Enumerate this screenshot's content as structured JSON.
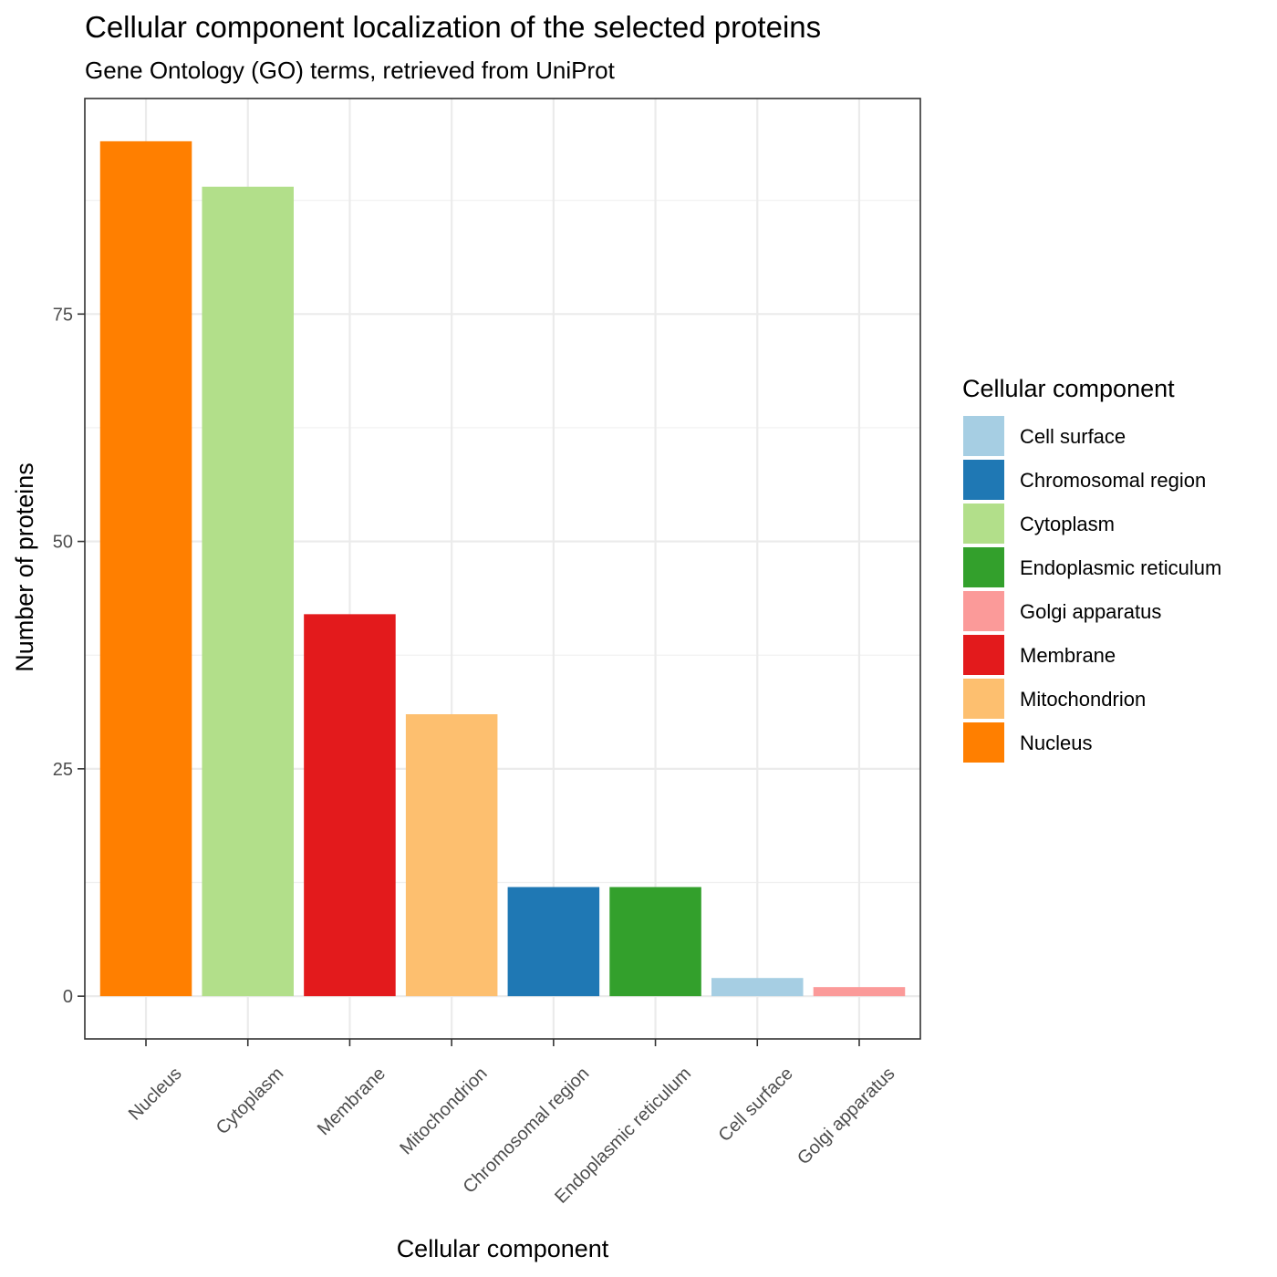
{
  "chart_data": {
    "type": "bar",
    "title": "Cellular component localization of the selected proteins",
    "subtitle": "Gene Ontology (GO) terms, retrieved from UniProt",
    "xlabel": "Cellular component",
    "ylabel": "Number of proteins",
    "categories": [
      "Nucleus",
      "Cytoplasm",
      "Membrane",
      "Mitochondrion",
      "Chromosomal region",
      "Endoplasmic reticulum",
      "Cell surface",
      "Golgi apparatus"
    ],
    "values": [
      94,
      89,
      42,
      31,
      12,
      12,
      2,
      1
    ],
    "colors": [
      "#ff7f00",
      "#b2df8a",
      "#e31a1c",
      "#fdbf6f",
      "#1f78b4",
      "#33a02c",
      "#a6cee3",
      "#fb9a99"
    ],
    "ylim": [
      -4.7,
      98.7
    ],
    "yticks": [
      0,
      25,
      50,
      75
    ],
    "grid": true,
    "legend": {
      "title": "Cellular component",
      "placement": "right",
      "entries": [
        {
          "label": "Cell surface",
          "color": "#a6cee3"
        },
        {
          "label": "Chromosomal region",
          "color": "#1f78b4"
        },
        {
          "label": "Cytoplasm",
          "color": "#b2df8a"
        },
        {
          "label": "Endoplasmic reticulum",
          "color": "#33a02c"
        },
        {
          "label": "Golgi apparatus",
          "color": "#fb9a99"
        },
        {
          "label": "Membrane",
          "color": "#e31a1c"
        },
        {
          "label": "Mitochondrion",
          "color": "#fdbf6f"
        },
        {
          "label": "Nucleus",
          "color": "#ff7f00"
        }
      ]
    }
  }
}
